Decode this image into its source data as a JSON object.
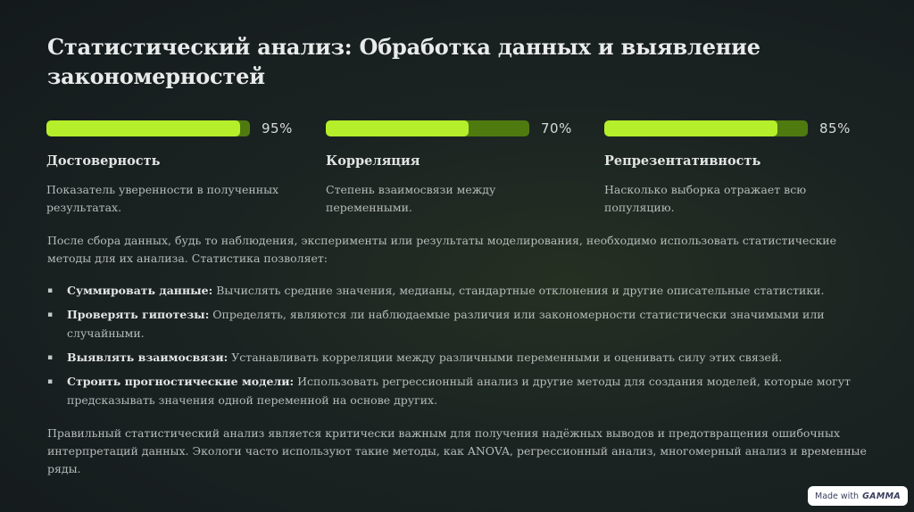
{
  "title": "Статистический анализ: Обработка данных и выявление закономерностей",
  "metrics": [
    {
      "percent_text": "95%",
      "fill_fraction": 0.95,
      "label": "Достоверность",
      "description": "Показатель уверенности в полученных результатах."
    },
    {
      "percent_text": "70%",
      "fill_fraction": 0.7,
      "label": "Корреляция",
      "description": "Степень взаимосвязи между переменными."
    },
    {
      "percent_text": "85%",
      "fill_fraction": 0.85,
      "label": "Репрезентативность",
      "description": "Насколько выборка отражает всю популяцию."
    }
  ],
  "intro": "После сбора данных, будь то наблюдения, эксперименты или результаты моделирования, необходимо использовать статистические методы для их анализа. Статистика позволяет:",
  "bullets": [
    {
      "term": "Суммировать данные:",
      "text": " Вычислять средние значения, медианы, стандартные отклонения и другие описательные статистики."
    },
    {
      "term": "Проверять гипотезы:",
      "text": " Определять, являются ли наблюдаемые различия или закономерности статистически значимыми или случайными."
    },
    {
      "term": "Выявлять взаимосвязи:",
      "text": " Устанавливать корреляции между различными переменными и оценивать силу этих связей."
    },
    {
      "term": "Строить прогностические модели:",
      "text": " Использовать регрессионный анализ и другие методы для создания моделей, которые могут предсказывать значения одной переменной на основе других."
    }
  ],
  "conclusion": "Правильный статистический анализ является критически важным для получения надёжных выводов и предотвращения ошибочных интерпретаций данных. Экологи часто используют такие методы, как ANOVA, регрессионный анализ, многомерный анализ и временные ряды.",
  "badge": {
    "prefix": "Made with",
    "brand": "GAMMA"
  },
  "colors": {
    "bar_fill": "#b5ee2a",
    "bar_track": "#4f7a10",
    "background": "#1b2322"
  }
}
